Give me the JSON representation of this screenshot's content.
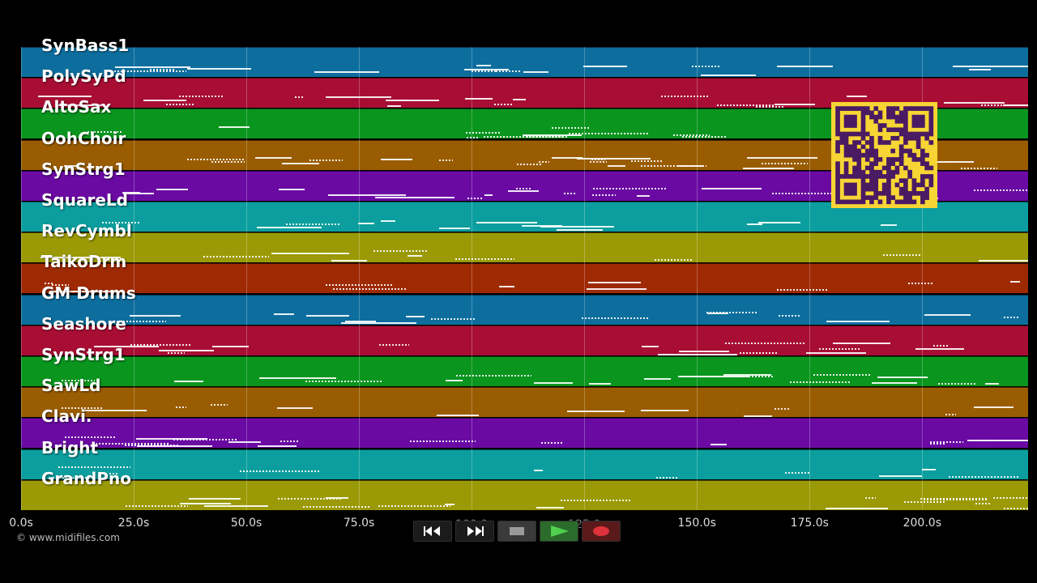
{
  "tracks": [
    {
      "label": "SynBass1",
      "color": "#0d6e9e"
    },
    {
      "label": "PolySyPd",
      "color": "#a80e34"
    },
    {
      "label": "AltoSax",
      "color": "#0a951e"
    },
    {
      "label": "OohChoir",
      "color": "#9a5c00"
    },
    {
      "label": "SynStrg1",
      "color": "#6a0aa3"
    },
    {
      "label": "SquareLd",
      "color": "#0c9e9e"
    },
    {
      "label": "RevCymbl",
      "color": "#9b9a06"
    },
    {
      "label": "TaikoDrm",
      "color": "#9e2a04"
    },
    {
      "label": "GM Drums",
      "color": "#0d6e9e"
    },
    {
      "label": "Seashore",
      "color": "#a80e34"
    },
    {
      "label": "SynStrg1",
      "color": "#0a951e"
    },
    {
      "label": "SawLd",
      "color": "#9a5c00"
    },
    {
      "label": "Clavi.",
      "color": "#6a0aa3"
    },
    {
      "label": "Bright",
      "color": "#0c9e9e"
    },
    {
      "label": "GrandPno",
      "color": "#9b9a06"
    }
  ],
  "timeline": {
    "ticks": [
      {
        "label": "0.0s",
        "value": 0.0
      },
      {
        "label": "25.0s",
        "value": 25.0
      },
      {
        "label": "50.0s",
        "value": 50.0
      },
      {
        "label": "75.0s",
        "value": 75.0
      },
      {
        "label": "100.0",
        "value": 100.0,
        "occluded": true
      },
      {
        "label": "125.0",
        "value": 125.0,
        "occluded": true
      },
      {
        "label": "150.0s",
        "value": 150.0
      },
      {
        "label": "175.0s",
        "value": 175.0
      },
      {
        "label": "200.0s",
        "value": 200.0
      }
    ],
    "max_seconds": 223.5
  },
  "copyright": "© www.midifiles.com",
  "transport": {
    "rewind": {
      "icon": "rewind-icon"
    },
    "fast_forward": {
      "icon": "fast-forward-icon"
    },
    "stop": {
      "icon": "stop-icon"
    },
    "play": {
      "icon": "play-icon",
      "color": "#3fb53f"
    },
    "record": {
      "icon": "record-icon",
      "color": "#d9323a"
    }
  },
  "qr": {
    "background": "#f6d534",
    "foreground": "#4a1a63"
  }
}
